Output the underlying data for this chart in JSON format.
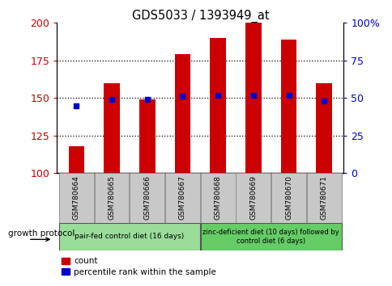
{
  "title": "GDS5033 / 1393949_at",
  "samples": [
    "GSM780664",
    "GSM780665",
    "GSM780666",
    "GSM780667",
    "GSM780668",
    "GSM780669",
    "GSM780670",
    "GSM780671"
  ],
  "counts": [
    118,
    160,
    149,
    179,
    190,
    200,
    189,
    160
  ],
  "percentile_ranks": [
    45,
    49,
    49,
    51,
    52,
    52,
    52,
    48
  ],
  "y_min": 100,
  "y_max": 200,
  "y_ticks": [
    100,
    125,
    150,
    175,
    200
  ],
  "right_y_ticks": [
    0,
    25,
    50,
    75,
    100
  ],
  "right_y_labels": [
    "0",
    "25",
    "50",
    "75",
    "100%"
  ],
  "bar_color": "#cc0000",
  "dot_color": "#0000cc",
  "bar_width": 0.45,
  "group1_label": "pair-fed control diet (16 days)",
  "group2_label": "zinc-deficient diet (10 days) followed by\ncontrol diet (6 days)",
  "group1_color": "#99dd99",
  "group2_color": "#66cc66",
  "protocol_label": "growth protocol",
  "legend_count_label": "count",
  "legend_pct_label": "percentile rank within the sample",
  "tick_color_left": "#cc0000",
  "tick_color_right": "#0000cc",
  "label_bg": "#c8c8c8",
  "grid_yticks": [
    125,
    150,
    175
  ]
}
